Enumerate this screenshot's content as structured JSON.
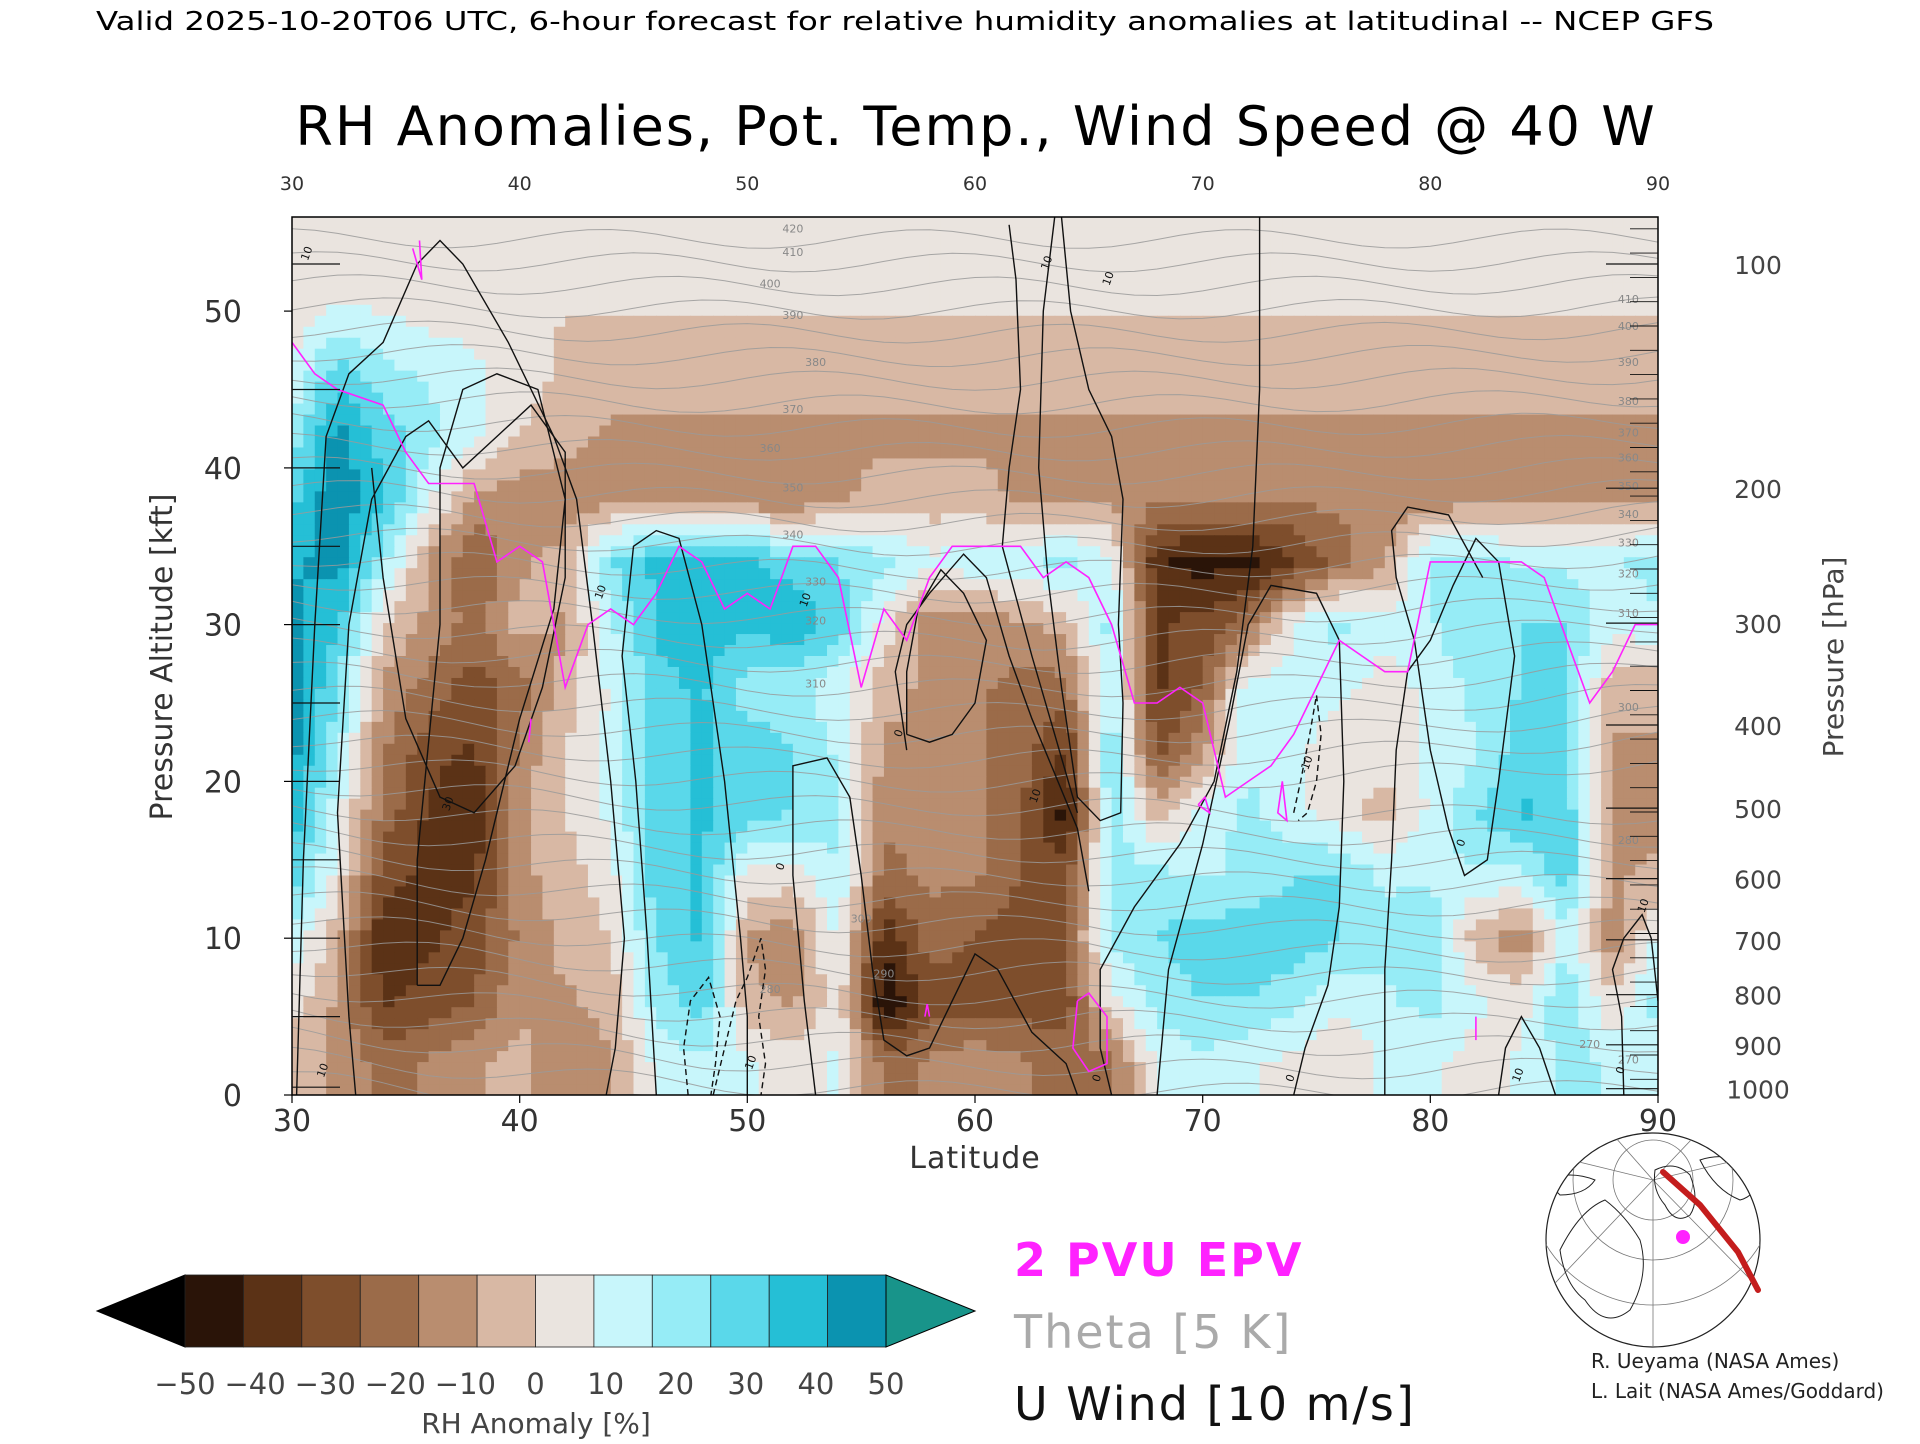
{
  "header": {
    "valid_line": "Valid 2025-10-20T06 UTC, 6-hour forecast for relative humidity anomalies at latitudinal -- NCEP GFS"
  },
  "chart_data": {
    "type": "heatmap",
    "title": "RH Anomalies, Pot. Temp., Wind Speed @ 40 W",
    "xlabel": "Latitude",
    "ylabel": "Pressure Altitude [kft]",
    "y2label": "Pressure [hPa]",
    "xlim": [
      30,
      90
    ],
    "ylim": [
      0,
      56
    ],
    "x_ticks": [
      30,
      40,
      50,
      60,
      70,
      80,
      90
    ],
    "y_ticks": [
      0,
      10,
      20,
      30,
      40,
      50
    ],
    "pressure_ticks": [
      {
        "label": "100",
        "kft": 53.0
      },
      {
        "label": "200",
        "kft": 38.7
      },
      {
        "label": "300",
        "kft": 30.1
      },
      {
        "label": "400",
        "kft": 23.6
      },
      {
        "label": "500",
        "kft": 18.3
      },
      {
        "label": "600",
        "kft": 13.8
      },
      {
        "label": "700",
        "kft": 9.9
      },
      {
        "label": "800",
        "kft": 6.4
      },
      {
        "label": "900",
        "kft": 3.2
      },
      {
        "label": "1000",
        "kft": 0.4
      }
    ],
    "rh_anomaly_field": {
      "latitudes": [
        30,
        32,
        34,
        36,
        38,
        40,
        42,
        44,
        46,
        48,
        50,
        52,
        54,
        56,
        58,
        60,
        62,
        64,
        66,
        68,
        70,
        72,
        74,
        76,
        78,
        80,
        82,
        84,
        86,
        88,
        90
      ],
      "altitudes_kft": [
        2,
        6,
        10,
        14,
        18,
        22,
        26,
        30,
        34,
        38,
        42,
        46,
        50,
        54
      ],
      "values_pct": [
        [
          -5,
          5,
          15,
          30,
          40,
          45,
          48,
          45,
          40,
          30,
          20,
          10,
          3,
          0
        ],
        [
          -10,
          -10,
          -5,
          5,
          10,
          20,
          25,
          35,
          45,
          50,
          45,
          30,
          10,
          0
        ],
        [
          -20,
          -35,
          -40,
          -30,
          -20,
          -15,
          -10,
          0,
          20,
          35,
          30,
          20,
          8,
          0
        ],
        [
          -15,
          -30,
          -35,
          -35,
          -35,
          -30,
          -20,
          -10,
          -10,
          10,
          20,
          15,
          5,
          0
        ],
        [
          -10,
          -25,
          -30,
          -35,
          -40,
          -35,
          -30,
          -20,
          -25,
          -10,
          10,
          10,
          5,
          0
        ],
        [
          -5,
          -10,
          -15,
          -10,
          -10,
          -15,
          -20,
          -5,
          -10,
          -15,
          0,
          5,
          2,
          0
        ],
        [
          -15,
          -10,
          -5,
          -5,
          0,
          0,
          -5,
          -10,
          -5,
          -15,
          -5,
          -2,
          0,
          0
        ],
        [
          -10,
          -5,
          0,
          5,
          10,
          10,
          10,
          15,
          25,
          -10,
          -10,
          -5,
          0,
          0
        ],
        [
          10,
          20,
          25,
          30,
          30,
          30,
          30,
          35,
          35,
          -10,
          -10,
          -5,
          0,
          0
        ],
        [
          15,
          30,
          35,
          35,
          35,
          35,
          35,
          40,
          35,
          -15,
          -10,
          -5,
          0,
          0
        ],
        [
          10,
          -5,
          -10,
          5,
          30,
          30,
          20,
          35,
          35,
          -15,
          -10,
          -5,
          0,
          0
        ],
        [
          5,
          -10,
          -15,
          5,
          25,
          25,
          20,
          40,
          30,
          -15,
          -10,
          -5,
          0,
          0
        ],
        [
          10,
          5,
          10,
          15,
          20,
          15,
          10,
          30,
          25,
          -10,
          -10,
          -5,
          0,
          0
        ],
        [
          -20,
          -50,
          -40,
          -20,
          -15,
          -10,
          -5,
          5,
          20,
          -5,
          -10,
          -5,
          0,
          0
        ],
        [
          -15,
          -30,
          -20,
          -15,
          -10,
          -10,
          -10,
          -15,
          10,
          -5,
          -10,
          -5,
          0,
          0
        ],
        [
          -10,
          -30,
          -25,
          -15,
          -15,
          -15,
          -15,
          -15,
          15,
          -5,
          -10,
          -5,
          0,
          0
        ],
        [
          -15,
          -30,
          -30,
          -25,
          -25,
          -20,
          -20,
          -10,
          15,
          -10,
          -10,
          -5,
          0,
          0
        ],
        [
          -20,
          -30,
          -25,
          -30,
          -45,
          -35,
          -20,
          -5,
          20,
          -10,
          -10,
          -5,
          0,
          0
        ],
        [
          -20,
          5,
          20,
          20,
          25,
          25,
          20,
          20,
          10,
          -10,
          -10,
          -5,
          0,
          0
        ],
        [
          10,
          20,
          25,
          20,
          -5,
          -30,
          -35,
          -35,
          -40,
          -15,
          -10,
          -5,
          0,
          0
        ],
        [
          15,
          25,
          30,
          15,
          10,
          -10,
          -25,
          -30,
          -45,
          -15,
          -10,
          -5,
          0,
          0
        ],
        [
          10,
          25,
          30,
          20,
          20,
          15,
          15,
          -20,
          -45,
          -15,
          -10,
          -5,
          0,
          0
        ],
        [
          5,
          20,
          30,
          25,
          10,
          10,
          10,
          10,
          -35,
          -15,
          -10,
          -5,
          0,
          0
        ],
        [
          0,
          10,
          25,
          25,
          5,
          5,
          10,
          20,
          -20,
          -15,
          -10,
          -5,
          0,
          0
        ],
        [
          10,
          15,
          20,
          15,
          -5,
          5,
          5,
          10,
          -10,
          -15,
          -10,
          -5,
          0,
          0
        ],
        [
          10,
          20,
          25,
          15,
          10,
          10,
          10,
          15,
          20,
          -15,
          -10,
          -5,
          0,
          0
        ],
        [
          5,
          10,
          -5,
          15,
          25,
          15,
          20,
          25,
          20,
          -10,
          -10,
          -5,
          0,
          0
        ],
        [
          10,
          5,
          -15,
          15,
          35,
          30,
          25,
          25,
          15,
          -10,
          -10,
          -5,
          0,
          0
        ],
        [
          20,
          25,
          15,
          30,
          30,
          25,
          25,
          25,
          15,
          -10,
          -10,
          -5,
          0,
          0
        ],
        [
          15,
          0,
          -15,
          -10,
          -10,
          -10,
          -5,
          10,
          15,
          -10,
          -10,
          -5,
          0,
          0
        ],
        [
          15,
          20,
          10,
          -5,
          -15,
          -10,
          -5,
          15,
          20,
          -10,
          -10,
          -5,
          0,
          0
        ]
      ]
    },
    "pv2_tropopause": {
      "name": "2 PVU EPV",
      "lat": [
        30,
        31,
        32,
        34,
        35,
        36,
        38,
        39,
        40,
        41,
        42,
        43,
        44,
        45,
        46,
        47,
        48,
        49,
        50,
        51,
        52,
        53,
        54,
        55,
        56,
        57,
        58,
        59,
        60,
        61,
        62,
        63,
        64,
        65,
        66,
        67,
        68,
        69,
        70,
        71,
        72,
        73,
        74,
        75,
        76,
        77,
        78,
        79,
        80,
        81,
        82,
        83,
        84,
        85,
        86,
        87,
        88,
        89,
        90
      ],
      "kft": [
        48,
        46,
        45,
        44,
        41,
        39,
        39,
        34,
        35,
        34,
        26,
        30,
        31,
        30,
        32,
        35,
        34,
        31,
        32,
        31,
        35,
        35,
        33,
        26,
        31,
        29,
        33,
        35,
        35,
        35,
        35,
        33,
        34,
        33,
        30,
        25,
        25,
        26,
        25,
        19,
        20,
        21,
        23,
        26,
        29,
        28,
        27,
        27,
        34,
        34,
        34,
        34,
        34,
        33,
        29,
        25,
        27,
        30,
        30
      ]
    },
    "theta_contours": {
      "name": "Theta",
      "interval": "5 K",
      "labels": [
        "270",
        "280",
        "290",
        "300",
        "310",
        "320",
        "330",
        "340",
        "350",
        "360",
        "370",
        "380",
        "390",
        "400",
        "410",
        "420"
      ]
    },
    "u_wind_contours": {
      "name": "U Wind",
      "interval": "10 m/s",
      "labels": [
        "0",
        "10",
        "20",
        "30",
        "-10"
      ]
    },
    "legend": {
      "pv_label": "2 PVU EPV",
      "theta_label": "Theta [5 K]",
      "wind_label": "U Wind [10 m/s]"
    },
    "colorbar": {
      "title": "RH Anomaly [%]",
      "labels": [
        "−50",
        "−40",
        "−30",
        "−20",
        "−10",
        "0",
        "10",
        "20",
        "30",
        "40",
        "50"
      ],
      "colors": [
        "#2a1408",
        "#5b3216",
        "#7e4e2c",
        "#9b6b49",
        "#b98d6f",
        "#d8b8a4",
        "#eae4df",
        "#c8f6fb",
        "#96ecf6",
        "#5ad8ea",
        "#25bfd6",
        "#0b93b0"
      ],
      "under_color": "#000000",
      "over_color": "#18948a"
    }
  },
  "credits": {
    "line1": "R. Ueyama (NASA Ames)",
    "line2": "L. Lait (NASA Ames/Goddard)"
  },
  "inset_map": {
    "marker_color": "#ff22ff",
    "path_color": "#c41d1d"
  }
}
